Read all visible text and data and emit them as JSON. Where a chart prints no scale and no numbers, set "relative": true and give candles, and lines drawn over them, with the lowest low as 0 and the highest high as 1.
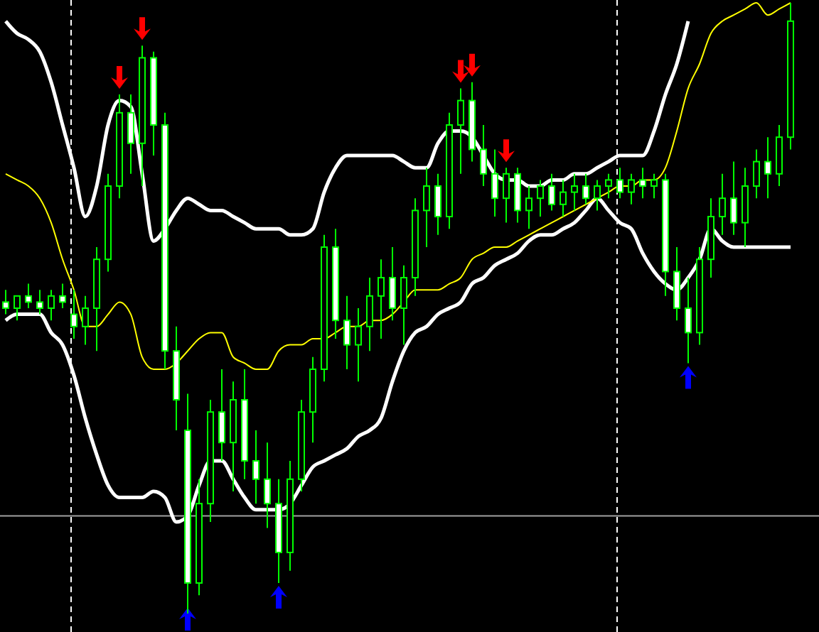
{
  "chart_data": {
    "type": "candlestick",
    "relative": true,
    "categories": [
      null,
      null,
      null,
      null,
      null,
      null,
      null,
      null,
      null,
      null,
      null,
      null,
      null,
      null,
      null,
      null,
      null,
      null,
      null,
      null,
      null,
      null,
      null,
      null,
      null,
      null,
      null,
      null,
      null,
      null,
      null,
      null,
      null,
      null,
      null,
      null,
      null,
      null,
      null,
      null,
      null,
      null,
      null,
      null,
      null,
      null,
      null,
      null,
      null,
      null,
      null,
      null,
      null,
      null,
      null,
      null,
      null,
      null,
      null,
      null,
      null,
      null,
      null,
      null,
      null,
      null,
      null,
      null,
      null,
      null
    ],
    "ohlc": [
      [
        0.51,
        0.53,
        0.49,
        0.5
      ],
      [
        0.5,
        0.52,
        0.48,
        0.52
      ],
      [
        0.52,
        0.54,
        0.5,
        0.51
      ],
      [
        0.51,
        0.53,
        0.49,
        0.5
      ],
      [
        0.5,
        0.53,
        0.48,
        0.52
      ],
      [
        0.52,
        0.54,
        0.5,
        0.51
      ],
      [
        0.49,
        0.53,
        0.45,
        0.47
      ],
      [
        0.47,
        0.52,
        0.44,
        0.5
      ],
      [
        0.5,
        0.6,
        0.43,
        0.58
      ],
      [
        0.58,
        0.72,
        0.56,
        0.7
      ],
      [
        0.7,
        0.85,
        0.68,
        0.82
      ],
      [
        0.82,
        0.85,
        0.72,
        0.77
      ],
      [
        0.77,
        0.93,
        0.7,
        0.91
      ],
      [
        0.91,
        0.92,
        0.75,
        0.8
      ],
      [
        0.8,
        0.82,
        0.4,
        0.43
      ],
      [
        0.43,
        0.47,
        0.3,
        0.35
      ],
      [
        0.3,
        0.36,
        0.0,
        0.05
      ],
      [
        0.05,
        0.22,
        0.03,
        0.18
      ],
      [
        0.18,
        0.35,
        0.15,
        0.33
      ],
      [
        0.33,
        0.4,
        0.25,
        0.28
      ],
      [
        0.28,
        0.38,
        0.2,
        0.35
      ],
      [
        0.35,
        0.4,
        0.22,
        0.25
      ],
      [
        0.25,
        0.3,
        0.18,
        0.22
      ],
      [
        0.22,
        0.28,
        0.14,
        0.18
      ],
      [
        0.18,
        0.22,
        0.05,
        0.1
      ],
      [
        0.1,
        0.25,
        0.07,
        0.22
      ],
      [
        0.22,
        0.35,
        0.2,
        0.33
      ],
      [
        0.33,
        0.42,
        0.28,
        0.4
      ],
      [
        0.4,
        0.62,
        0.38,
        0.6
      ],
      [
        0.6,
        0.63,
        0.45,
        0.48
      ],
      [
        0.48,
        0.52,
        0.4,
        0.44
      ],
      [
        0.44,
        0.5,
        0.38,
        0.47
      ],
      [
        0.47,
        0.55,
        0.43,
        0.52
      ],
      [
        0.52,
        0.58,
        0.45,
        0.55
      ],
      [
        0.55,
        0.6,
        0.48,
        0.5
      ],
      [
        0.5,
        0.57,
        0.44,
        0.55
      ],
      [
        0.55,
        0.68,
        0.52,
        0.66
      ],
      [
        0.66,
        0.73,
        0.6,
        0.7
      ],
      [
        0.7,
        0.72,
        0.62,
        0.65
      ],
      [
        0.65,
        0.82,
        0.63,
        0.8
      ],
      [
        0.8,
        0.86,
        0.72,
        0.84
      ],
      [
        0.84,
        0.87,
        0.74,
        0.76
      ],
      [
        0.76,
        0.8,
        0.7,
        0.72
      ],
      [
        0.72,
        0.76,
        0.65,
        0.68
      ],
      [
        0.68,
        0.73,
        0.64,
        0.72
      ],
      [
        0.72,
        0.73,
        0.64,
        0.66
      ],
      [
        0.66,
        0.7,
        0.63,
        0.68
      ],
      [
        0.68,
        0.71,
        0.65,
        0.7
      ],
      [
        0.7,
        0.72,
        0.66,
        0.67
      ],
      [
        0.67,
        0.71,
        0.65,
        0.69
      ],
      [
        0.69,
        0.72,
        0.66,
        0.7
      ],
      [
        0.7,
        0.72,
        0.67,
        0.68
      ],
      [
        0.68,
        0.71,
        0.66,
        0.7
      ],
      [
        0.7,
        0.72,
        0.68,
        0.71
      ],
      [
        0.71,
        0.73,
        0.68,
        0.69
      ],
      [
        0.69,
        0.72,
        0.67,
        0.71
      ],
      [
        0.71,
        0.73,
        0.68,
        0.7
      ],
      [
        0.7,
        0.72,
        0.68,
        0.71
      ],
      [
        0.71,
        0.72,
        0.52,
        0.56
      ],
      [
        0.56,
        0.6,
        0.48,
        0.5
      ],
      [
        0.5,
        0.55,
        0.41,
        0.46
      ],
      [
        0.46,
        0.6,
        0.44,
        0.58
      ],
      [
        0.58,
        0.68,
        0.55,
        0.65
      ],
      [
        0.65,
        0.72,
        0.62,
        0.68
      ],
      [
        0.68,
        0.74,
        0.62,
        0.64
      ],
      [
        0.64,
        0.73,
        0.6,
        0.7
      ],
      [
        0.7,
        0.76,
        0.68,
        0.74
      ],
      [
        0.74,
        0.78,
        0.68,
        0.72
      ],
      [
        0.72,
        0.8,
        0.7,
        0.78
      ],
      [
        0.78,
        1.0,
        0.76,
        0.97
      ]
    ],
    "series": [
      {
        "type": "line",
        "color": "#ffffff",
        "values": [
          0.97,
          0.95,
          0.94,
          0.92,
          0.87,
          0.8,
          0.73,
          0.65,
          0.7,
          0.8,
          0.84,
          0.83,
          0.72,
          0.61,
          0.63,
          0.66,
          0.68,
          0.67,
          0.66,
          0.66,
          0.65,
          0.64,
          0.63,
          0.63,
          0.63,
          0.62,
          0.62,
          0.63,
          0.69,
          0.73,
          0.75,
          0.75,
          0.75,
          0.75,
          0.75,
          0.74,
          0.73,
          0.73,
          0.77,
          0.79,
          0.79,
          0.78,
          0.75,
          0.72,
          0.71,
          0.71,
          0.7,
          0.7,
          0.71,
          0.71,
          0.72,
          0.72,
          0.73,
          0.74,
          0.75,
          0.75,
          0.75,
          0.79,
          0.85,
          0.9,
          0.97,
          null,
          null,
          null,
          null,
          null,
          null,
          null,
          null,
          null
        ]
      },
      {
        "type": "line",
        "color": "#ffffff",
        "values": [
          0.48,
          0.49,
          0.49,
          0.49,
          0.46,
          0.44,
          0.39,
          0.32,
          0.26,
          0.21,
          0.19,
          0.19,
          0.19,
          0.2,
          0.19,
          0.15,
          0.16,
          0.21,
          0.25,
          0.25,
          0.22,
          0.19,
          0.17,
          0.17,
          0.17,
          0.18,
          0.21,
          0.24,
          0.25,
          0.26,
          0.27,
          0.29,
          0.3,
          0.32,
          0.38,
          0.43,
          0.46,
          0.47,
          0.49,
          0.5,
          0.51,
          0.54,
          0.55,
          0.57,
          0.58,
          0.59,
          0.61,
          0.62,
          0.62,
          0.63,
          0.64,
          0.66,
          0.68,
          0.66,
          0.64,
          0.63,
          0.59,
          0.56,
          0.54,
          0.53,
          0.55,
          0.58,
          0.63,
          0.61,
          0.6,
          0.6,
          0.6,
          0.6,
          0.6,
          0.6
        ]
      },
      {
        "type": "line",
        "color": "#ffff00",
        "values": [
          0.72,
          0.71,
          0.7,
          0.68,
          0.64,
          0.58,
          0.53,
          0.47,
          0.47,
          0.49,
          0.51,
          0.49,
          0.42,
          0.4,
          0.4,
          0.41,
          0.43,
          0.45,
          0.46,
          0.46,
          0.42,
          0.41,
          0.4,
          0.4,
          0.43,
          0.44,
          0.44,
          0.45,
          0.45,
          0.46,
          0.47,
          0.47,
          0.48,
          0.48,
          0.49,
          0.51,
          0.53,
          0.53,
          0.53,
          0.54,
          0.55,
          0.58,
          0.59,
          0.6,
          0.6,
          0.61,
          0.62,
          0.63,
          0.64,
          0.65,
          0.66,
          0.67,
          0.68,
          0.69,
          0.7,
          0.7,
          0.71,
          0.71,
          0.73,
          0.79,
          0.86,
          0.9,
          0.95,
          0.97,
          0.98,
          0.99,
          1.0,
          0.98,
          0.99,
          1.0
        ]
      }
    ],
    "ref_lines": [
      {
        "axis": "y",
        "value": 0.16,
        "color": "#a0a0a0"
      }
    ]
  }
}
